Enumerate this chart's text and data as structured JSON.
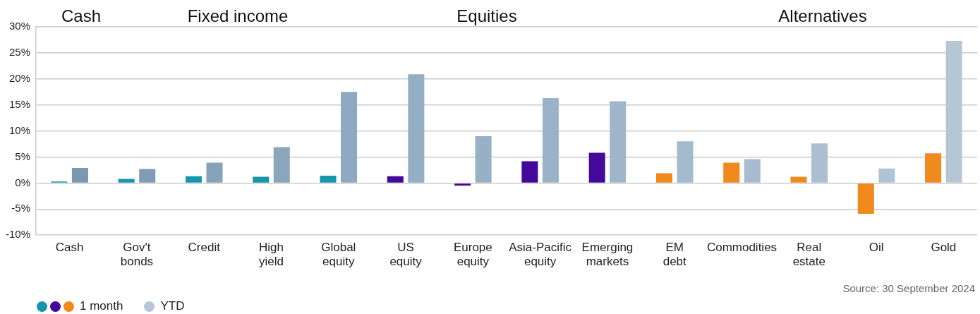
{
  "chart_data": {
    "type": "bar",
    "categories": [
      "Cash",
      "Gov't bonds",
      "Credit",
      "High yield",
      "Global equity",
      "US equity",
      "Europe equity",
      "Asia-Pacific equity",
      "Emerging markets",
      "EM debt",
      "Commodities",
      "Real estate",
      "Oil",
      "Gold"
    ],
    "series": [
      {
        "name": "1 month",
        "colors": [
          "#1596aa",
          "#1596aa",
          "#1596aa",
          "#1596aa",
          "#1596aa",
          "#43099a",
          "#43099a",
          "#43099a",
          "#43099a",
          "#f08a1c",
          "#f08a1c",
          "#f08a1c",
          "#f08a1c",
          "#f08a1c"
        ],
        "values": [
          0.3,
          0.8,
          1.3,
          1.2,
          1.4,
          1.3,
          -0.5,
          4.2,
          5.8,
          1.9,
          3.9,
          1.2,
          -5.9,
          5.7
        ]
      },
      {
        "name": "YTD",
        "colors": [
          "#7a98b0",
          "#7f9cb5",
          "#86a3ba",
          "#8aa6bd",
          "#8ea9bf",
          "#94aec4",
          "#97b0c6",
          "#9ab3c8",
          "#9eb5ca",
          "#a3b9cc",
          "#a7bccf",
          "#abbfd1",
          "#b0c3d4",
          "#b5c7d6"
        ],
        "values": [
          2.9,
          2.7,
          3.9,
          6.9,
          17.5,
          20.9,
          9.0,
          16.3,
          15.7,
          8.0,
          4.6,
          7.6,
          2.8,
          27.3
        ]
      }
    ],
    "ylim": [
      -10,
      30
    ],
    "yticks": [
      {
        "value": -10,
        "label": "-10%"
      },
      {
        "value": -5,
        "label": "-5%"
      },
      {
        "value": 0,
        "label": "0%"
      },
      {
        "value": 5,
        "label": "5%"
      },
      {
        "value": 10,
        "label": "10%"
      },
      {
        "value": 15,
        "label": "15%"
      },
      {
        "value": 20,
        "label": "20%"
      },
      {
        "value": 25,
        "label": "25%"
      },
      {
        "value": 30,
        "label": "30%"
      }
    ],
    "grid": "y",
    "legend": "bottom left",
    "annotations": [
      "Cash",
      "Fixed income",
      "Equities",
      "Alternatives",
      "Source: 30 September 2024"
    ]
  }
}
